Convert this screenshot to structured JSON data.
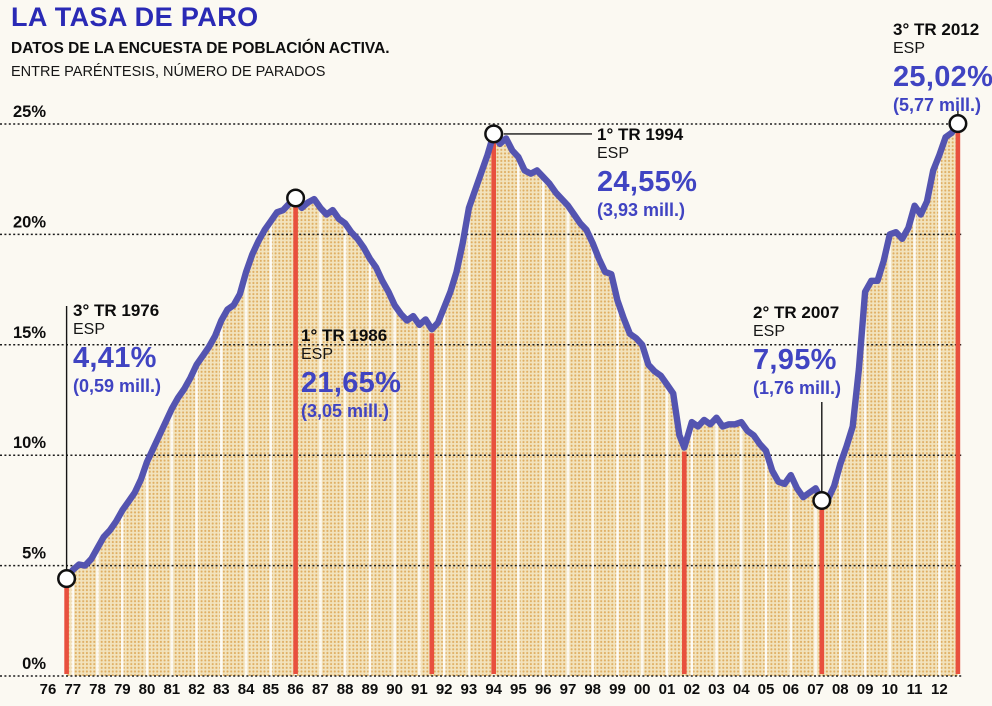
{
  "header": {
    "title": "LA TASA DE PARO",
    "subtitle": "DATOS DE LA ENCUESTA DE POBLACIÓN ACTIVA.",
    "note": "ENTRE PARÉNTESIS, NÚMERO DE PARADOS"
  },
  "colors": {
    "title_blue": "#2a2ab5",
    "accent_blue": "#4044c2",
    "line_blue": "#5454b0",
    "marker_red": "#e8503e",
    "fill_base": "#f2e3bd",
    "fill_dot": "#dfae62",
    "grid": "#1c1c1c",
    "paper": "#fbf9f2"
  },
  "axis": {
    "y_labels": [
      "25%",
      "20%",
      "15%",
      "10%",
      "5%",
      "0%"
    ],
    "y_values": [
      25,
      20,
      15,
      10,
      5,
      0
    ],
    "x_labels": [
      "76",
      "77",
      "78",
      "79",
      "80",
      "81",
      "82",
      "83",
      "84",
      "85",
      "86",
      "87",
      "88",
      "89",
      "90",
      "91",
      "92",
      "93",
      "94",
      "95",
      "96",
      "97",
      "98",
      "99",
      "00",
      "01",
      "02",
      "03",
      "04",
      "05",
      "06",
      "07",
      "08",
      "09",
      "10",
      "11",
      "12"
    ]
  },
  "annotations": [
    {
      "id": "tr3-1976",
      "label": "3° TR 1976",
      "region": "ESP",
      "rate": "4,41%",
      "unemployed": "(0,59 mill.)",
      "year": 1976.75,
      "pct": 4.41
    },
    {
      "id": "tr1-1986",
      "label": "1° TR 1986",
      "region": "ESP",
      "rate": "21,65%",
      "unemployed": "(3,05 mill.)",
      "year": 1986.0,
      "pct": 21.65
    },
    {
      "id": "tr1-1994",
      "label": "1° TR 1994",
      "region": "ESP",
      "rate": "24,55%",
      "unemployed": "(3,93 mill.)",
      "year": 1994.0,
      "pct": 24.55
    },
    {
      "id": "tr2-2007",
      "label": "2° TR 2007",
      "region": "ESP",
      "rate": "7,95%",
      "unemployed": "(1,76 mill.)",
      "year": 2007.25,
      "pct": 7.95
    },
    {
      "id": "tr3-2012",
      "label": "3° TR 2012",
      "region": "ESP",
      "rate": "25,02%",
      "unemployed": "(5,77 mill.)",
      "year": 2012.75,
      "pct": 25.02
    }
  ],
  "red_lines": [
    {
      "year": 1976.75,
      "pct": 4.41
    },
    {
      "year": 1986.0,
      "pct": 21.65
    },
    {
      "year": 1991.5,
      "pct": 15.7
    },
    {
      "year": 1994.0,
      "pct": 24.55
    },
    {
      "year": 2001.7,
      "pct": 10.35
    },
    {
      "year": 2007.25,
      "pct": 7.95
    },
    {
      "year": 2012.75,
      "pct": 25.02
    }
  ],
  "chart_data": {
    "type": "area",
    "title": "LA TASA DE PARO",
    "subtitle": "DATOS DE LA ENCUESTA DE POBLACIÓN ACTIVA. ENTRE PARÉNTESIS, NÚMERO DE PARADOS",
    "unit": "%",
    "x_range": [
      1976.75,
      2012.75
    ],
    "ylim": [
      0,
      25
    ],
    "grid": true,
    "key_points": [
      {
        "label": "3° TR 1976",
        "value": 4.41,
        "unemployed_millions": 0.59
      },
      {
        "label": "1° TR 1986",
        "value": 21.65,
        "unemployed_millions": 3.05
      },
      {
        "label": "1° TR 1994",
        "value": 24.55,
        "unemployed_millions": 3.93
      },
      {
        "label": "2° TR 2007",
        "value": 7.95,
        "unemployed_millions": 1.76
      },
      {
        "label": "3° TR 2012",
        "value": 25.02,
        "unemployed_millions": 5.77
      }
    ],
    "points": [
      [
        1976.75,
        4.41
      ],
      [
        1977.0,
        4.8
      ],
      [
        1977.25,
        5.05
      ],
      [
        1977.5,
        5.0
      ],
      [
        1977.75,
        5.3
      ],
      [
        1978.0,
        5.8
      ],
      [
        1978.25,
        6.3
      ],
      [
        1978.5,
        6.6
      ],
      [
        1978.75,
        7.0
      ],
      [
        1979.0,
        7.5
      ],
      [
        1979.25,
        7.9
      ],
      [
        1979.5,
        8.3
      ],
      [
        1979.75,
        8.9
      ],
      [
        1980.0,
        9.7
      ],
      [
        1980.25,
        10.3
      ],
      [
        1980.5,
        10.9
      ],
      [
        1980.75,
        11.5
      ],
      [
        1981.0,
        12.1
      ],
      [
        1981.25,
        12.6
      ],
      [
        1981.5,
        13.0
      ],
      [
        1981.75,
        13.5
      ],
      [
        1982.0,
        14.1
      ],
      [
        1982.25,
        14.5
      ],
      [
        1982.5,
        14.9
      ],
      [
        1982.75,
        15.4
      ],
      [
        1983.0,
        16.1
      ],
      [
        1983.25,
        16.6
      ],
      [
        1983.5,
        16.8
      ],
      [
        1983.75,
        17.3
      ],
      [
        1984.0,
        18.3
      ],
      [
        1984.25,
        19.1
      ],
      [
        1984.5,
        19.7
      ],
      [
        1984.75,
        20.2
      ],
      [
        1985.0,
        20.6
      ],
      [
        1985.25,
        21.0
      ],
      [
        1985.5,
        21.1
      ],
      [
        1985.75,
        21.4
      ],
      [
        1986.0,
        21.65
      ],
      [
        1986.25,
        21.2
      ],
      [
        1986.5,
        21.45
      ],
      [
        1986.75,
        21.6
      ],
      [
        1987.0,
        21.2
      ],
      [
        1987.25,
        20.9
      ],
      [
        1987.5,
        21.1
      ],
      [
        1987.75,
        20.7
      ],
      [
        1988.0,
        20.5
      ],
      [
        1988.25,
        20.1
      ],
      [
        1988.5,
        19.8
      ],
      [
        1988.75,
        19.4
      ],
      [
        1989.0,
        18.9
      ],
      [
        1989.25,
        18.5
      ],
      [
        1989.5,
        17.9
      ],
      [
        1989.75,
        17.4
      ],
      [
        1990.0,
        16.8
      ],
      [
        1990.25,
        16.4
      ],
      [
        1990.5,
        16.1
      ],
      [
        1990.75,
        16.3
      ],
      [
        1991.0,
        15.9
      ],
      [
        1991.25,
        16.15
      ],
      [
        1991.5,
        15.7
      ],
      [
        1991.75,
        16.0
      ],
      [
        1992.0,
        16.7
      ],
      [
        1992.25,
        17.4
      ],
      [
        1992.5,
        18.3
      ],
      [
        1992.75,
        19.6
      ],
      [
        1993.0,
        21.2
      ],
      [
        1993.25,
        22.0
      ],
      [
        1993.5,
        22.8
      ],
      [
        1993.75,
        23.6
      ],
      [
        1994.0,
        24.55
      ],
      [
        1994.25,
        24.1
      ],
      [
        1994.5,
        24.35
      ],
      [
        1994.75,
        23.8
      ],
      [
        1995.0,
        23.5
      ],
      [
        1995.25,
        22.9
      ],
      [
        1995.5,
        22.75
      ],
      [
        1995.75,
        22.9
      ],
      [
        1996.0,
        22.6
      ],
      [
        1996.25,
        22.3
      ],
      [
        1996.5,
        21.9
      ],
      [
        1996.75,
        21.6
      ],
      [
        1997.0,
        21.3
      ],
      [
        1997.25,
        20.9
      ],
      [
        1997.5,
        20.5
      ],
      [
        1997.75,
        20.2
      ],
      [
        1998.0,
        19.6
      ],
      [
        1998.25,
        18.9
      ],
      [
        1998.5,
        18.3
      ],
      [
        1998.75,
        18.2
      ],
      [
        1999.0,
        17.0
      ],
      [
        1999.25,
        16.2
      ],
      [
        1999.5,
        15.5
      ],
      [
        1999.75,
        15.3
      ],
      [
        2000.0,
        15.0
      ],
      [
        2000.25,
        14.1
      ],
      [
        2000.5,
        13.8
      ],
      [
        2000.75,
        13.6
      ],
      [
        2001.0,
        13.2
      ],
      [
        2001.25,
        12.8
      ],
      [
        2001.5,
        10.9
      ],
      [
        2001.7,
        10.35
      ],
      [
        2002.0,
        11.5
      ],
      [
        2002.25,
        11.3
      ],
      [
        2002.5,
        11.6
      ],
      [
        2002.75,
        11.4
      ],
      [
        2003.0,
        11.7
      ],
      [
        2003.25,
        11.3
      ],
      [
        2003.5,
        11.4
      ],
      [
        2003.75,
        11.4
      ],
      [
        2004.0,
        11.5
      ],
      [
        2004.25,
        11.1
      ],
      [
        2004.5,
        10.9
      ],
      [
        2004.75,
        10.5
      ],
      [
        2005.0,
        10.2
      ],
      [
        2005.25,
        9.3
      ],
      [
        2005.5,
        8.8
      ],
      [
        2005.75,
        8.7
      ],
      [
        2006.0,
        9.1
      ],
      [
        2006.25,
        8.5
      ],
      [
        2006.5,
        8.1
      ],
      [
        2006.75,
        8.3
      ],
      [
        2007.0,
        8.5
      ],
      [
        2007.25,
        7.95
      ],
      [
        2007.5,
        8.0
      ],
      [
        2007.75,
        8.6
      ],
      [
        2008.0,
        9.6
      ],
      [
        2008.25,
        10.4
      ],
      [
        2008.5,
        11.3
      ],
      [
        2008.75,
        13.9
      ],
      [
        2009.0,
        17.4
      ],
      [
        2009.25,
        17.9
      ],
      [
        2009.5,
        17.9
      ],
      [
        2009.75,
        18.8
      ],
      [
        2010.0,
        20.0
      ],
      [
        2010.25,
        20.1
      ],
      [
        2010.5,
        19.8
      ],
      [
        2010.75,
        20.3
      ],
      [
        2011.0,
        21.3
      ],
      [
        2011.25,
        20.9
      ],
      [
        2011.5,
        21.5
      ],
      [
        2011.75,
        22.9
      ],
      [
        2012.0,
        23.6
      ],
      [
        2012.25,
        24.4
      ],
      [
        2012.5,
        24.6
      ],
      [
        2012.75,
        25.02
      ]
    ]
  }
}
